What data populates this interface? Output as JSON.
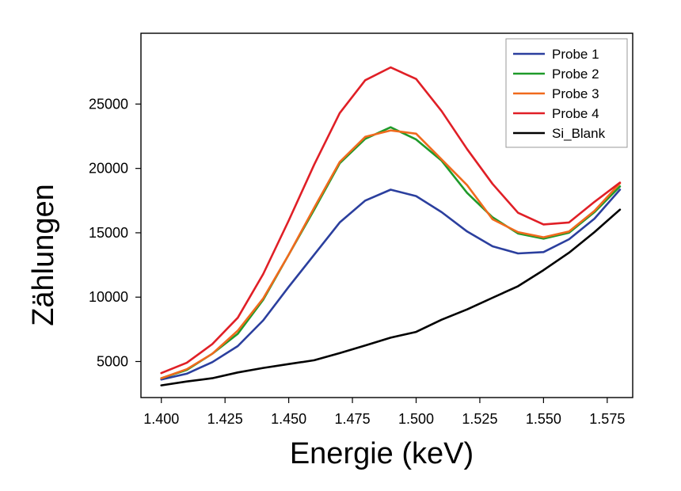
{
  "chart_data": {
    "type": "line",
    "title": "",
    "xlabel": "Energie (keV)",
    "ylabel": "Zählungen",
    "xlim": [
      1.392,
      1.585
    ],
    "ylim": [
      2200,
      30500
    ],
    "grid": false,
    "legend_position": "top-right",
    "x": [
      1.4,
      1.41,
      1.42,
      1.43,
      1.44,
      1.45,
      1.46,
      1.47,
      1.48,
      1.49,
      1.5,
      1.51,
      1.52,
      1.53,
      1.54,
      1.55,
      1.56,
      1.57,
      1.58
    ],
    "x_ticks": [
      1.4,
      1.425,
      1.45,
      1.475,
      1.5,
      1.525,
      1.55,
      1.575
    ],
    "x_tick_labels": [
      "1.400",
      "1.425",
      "1.450",
      "1.475",
      "1.500",
      "1.525",
      "1.550",
      "1.575"
    ],
    "y_ticks": [
      5000,
      10000,
      15000,
      20000,
      25000
    ],
    "y_tick_labels": [
      "5000",
      "10000",
      "15000",
      "20000",
      "25000"
    ],
    "series": [
      {
        "name": "Probe 1",
        "color": "#2b3f9e",
        "values": [
          3600,
          4050,
          4950,
          6200,
          8200,
          10800,
          13300,
          15800,
          17500,
          18350,
          17850,
          16600,
          15100,
          13950,
          13400,
          13500,
          14500,
          16100,
          18350
        ]
      },
      {
        "name": "Probe 2",
        "color": "#1f9a2a",
        "values": [
          3700,
          4350,
          5600,
          7150,
          9800,
          13300,
          16800,
          20400,
          22300,
          23200,
          22250,
          20600,
          18100,
          16200,
          14950,
          14550,
          15000,
          16600,
          18600
        ]
      },
      {
        "name": "Probe 3",
        "color": "#f06a1d",
        "values": [
          3700,
          4400,
          5600,
          7400,
          9900,
          13300,
          16950,
          20500,
          22450,
          22950,
          22700,
          20700,
          18700,
          16050,
          15050,
          14650,
          15100,
          16700,
          18850
        ]
      },
      {
        "name": "Probe 4",
        "color": "#e01f26",
        "values": [
          4100,
          4900,
          6350,
          8400,
          11800,
          15950,
          20300,
          24300,
          26850,
          27850,
          26950,
          24450,
          21500,
          18800,
          16550,
          15650,
          15800,
          17400,
          18900
        ]
      },
      {
        "name": "Si_Blank",
        "color": "#000000",
        "values": [
          3150,
          3450,
          3700,
          4150,
          4500,
          4800,
          5100,
          5650,
          6250,
          6850,
          7300,
          8250,
          9050,
          9950,
          10850,
          12100,
          13450,
          15050,
          16800
        ]
      }
    ]
  }
}
